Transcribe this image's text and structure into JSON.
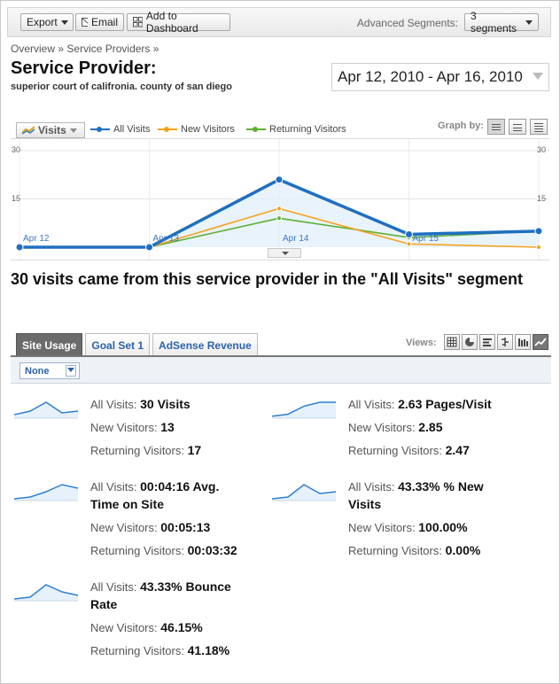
{
  "toolbar": {
    "export_label": "Export",
    "email_label": "Email",
    "dashboard_label": "Add to Dashboard",
    "segments_label": "Advanced Segments:",
    "segments_value": "3 segments"
  },
  "breadcrumb": [
    "Overview",
    "»",
    "Service Providers",
    "»"
  ],
  "page": {
    "title": "Service Provider:",
    "subtitle": "superior court of califronia. county of san diego",
    "date_range": "Apr 12, 2010 - Apr 16, 2010"
  },
  "graph": {
    "metric": "Visits",
    "graph_by_label": "Graph by:",
    "legend": [
      {
        "name": "All Visits",
        "color": "#1f6fc0"
      },
      {
        "name": "New Visitors",
        "color": "#f5a11c"
      },
      {
        "name": "Returning Visitors",
        "color": "#5db035"
      }
    ]
  },
  "chart_data": {
    "type": "line",
    "x": [
      "Apr 12",
      "Apr 13",
      "Apr 14",
      "Apr 15",
      "Apr 16"
    ],
    "x_tick_labels": [
      "Apr 12",
      "Apr 13",
      "Apr 14",
      "Apr 15"
    ],
    "y_ticks_left": [
      "30",
      "15"
    ],
    "y_ticks_right": [
      "30",
      "15"
    ],
    "ylim": [
      0,
      30
    ],
    "series": [
      {
        "name": "All Visits",
        "color": "#1f6fc0",
        "values": [
          0,
          0,
          21,
          4,
          5
        ]
      },
      {
        "name": "New Visitors",
        "color": "#f5a11c",
        "values": [
          0,
          0,
          12,
          1,
          0
        ]
      },
      {
        "name": "Returning Visitors",
        "color": "#5db035",
        "values": [
          0,
          0,
          9,
          3,
          5
        ]
      }
    ],
    "grid": true,
    "legend_position": "top-left"
  },
  "headline": "30 visits came from this service provider in the \"All Visits\" segment",
  "tabs": [
    "Site Usage",
    "Goal Set 1",
    "AdSense Revenue"
  ],
  "views_label": "Views:",
  "filter_value": "None",
  "metrics": [
    {
      "spark": [
        2,
        4,
        9,
        3,
        4
      ],
      "lines": [
        {
          "label": "All Visits:",
          "value": "30 Visits"
        },
        {
          "label": "New Visitors:",
          "value": "13"
        },
        {
          "label": "Returning Visitors:",
          "value": "17"
        }
      ]
    },
    {
      "spark": [
        1,
        2,
        6,
        8,
        8
      ],
      "lines": [
        {
          "label": "All Visits:",
          "value": "2.63 Pages/Visit"
        },
        {
          "label": "New Visitors:",
          "value": "2.85"
        },
        {
          "label": "Returning Visitors:",
          "value": "2.47"
        }
      ]
    },
    {
      "spark": [
        1,
        2,
        5,
        9,
        7
      ],
      "lines": [
        {
          "label": "All Visits:",
          "value": "00:04:16 Avg."
        },
        {
          "label": "",
          "value": "Time on Site"
        },
        {
          "label": "New Visitors:",
          "value": "00:05:13"
        },
        {
          "label": "Returning Visitors:",
          "value": "00:03:32"
        }
      ]
    },
    {
      "spark": [
        1,
        2,
        9,
        4,
        5
      ],
      "lines": [
        {
          "label": "All Visits:",
          "value": "43.33% % New"
        },
        {
          "label": "",
          "value": "Visits"
        },
        {
          "label": "New Visitors:",
          "value": "100.00%"
        },
        {
          "label": "Returning Visitors:",
          "value": "0.00%"
        }
      ]
    },
    {
      "spark": [
        1,
        2,
        9,
        5,
        3
      ],
      "lines": [
        {
          "label": "All Visits:",
          "value": "43.33% Bounce"
        },
        {
          "label": "",
          "value": "Rate"
        },
        {
          "label": "New Visitors:",
          "value": "46.15%"
        },
        {
          "label": "Returning Visitors:",
          "value": "41.18%"
        }
      ]
    }
  ]
}
